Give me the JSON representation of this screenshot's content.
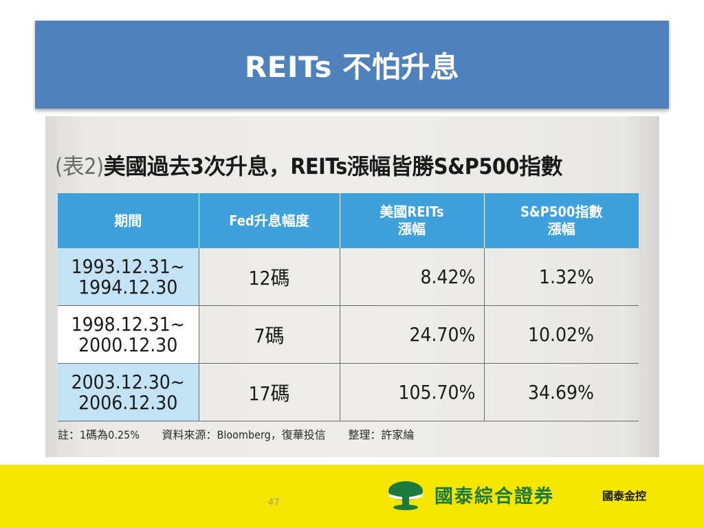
{
  "slide": {
    "title": "REITs 不怕升息",
    "page_number": "47"
  },
  "figure": {
    "caption_prefix": "(表2)",
    "caption_text": "美國過去3次升息，REITs漲幅皆勝S&P500指數",
    "headers": [
      "期間",
      "Fed升息幅度",
      "美國REITs\n漲幅",
      "S&P500指數\n漲幅"
    ],
    "rows": [
      {
        "period_start": "1993.12.31~",
        "period_end": "1994.12.30",
        "fed_hike": "12碼",
        "reits": "8.42%",
        "sp500": "1.32%"
      },
      {
        "period_start": "1998.12.31~",
        "period_end": "2000.12.30",
        "fed_hike": "7碼",
        "reits": "24.70%",
        "sp500": "10.02%"
      },
      {
        "period_start": "2003.12.30~",
        "period_end": "2006.12.30",
        "fed_hike": "17碼",
        "reits": "105.70%",
        "sp500": "34.69%"
      }
    ],
    "notes": [
      "註：1碼為0.25%",
      "資料來源：Bloomberg，復華投信",
      "整理：許家綸"
    ]
  },
  "footer": {
    "brand": "國泰綜合證券",
    "holding": "國泰金控",
    "logo_icon": "tree-logo-icon",
    "background_color": "#f5e600",
    "brand_color": "#1c7a3e"
  },
  "colors": {
    "title_bar": "#4f81bd",
    "table_header": "#3fa1dc",
    "period_cell": "#c3e2f4"
  }
}
